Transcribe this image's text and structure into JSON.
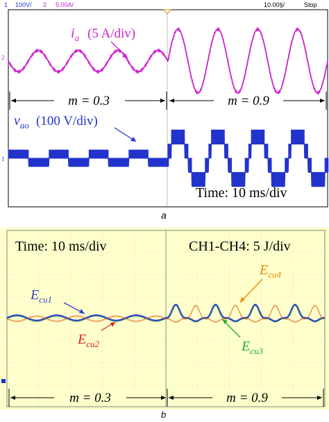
{
  "scope_a": {
    "header": {
      "ch1_num": "1",
      "ch1_scale": "100V/",
      "ch2_num": "2",
      "ch2_scale": "5.00A/",
      "timebase": "10.00§/",
      "state": "Stop"
    },
    "marker_ch2": "2",
    "marker_ch1": "1"
  },
  "chart_data": [
    {
      "type": "line",
      "panel": "a",
      "caption": "a",
      "time_per_div_ms": 10,
      "x_divisions": 10,
      "y_divisions": 8,
      "background": "#ffffff",
      "grid": false,
      "annotations": {
        "ia_label": "i",
        "ia_sub": "a",
        "ia_scale": "(5 A/div)",
        "vao_label": "v",
        "vao_sub": "ao",
        "vao_scale": "(100 V/div)",
        "m_left": "m = 0.3",
        "m_right": "m = 0.9",
        "time": "Time: 10 ms/div"
      },
      "series": [
        {
          "name": "i_a",
          "color": "#cc22cc",
          "unit": "A/div",
          "segments": [
            {
              "m": 0.3,
              "x_range_div": [
                0,
                5
              ],
              "amplitude_div": 0.45,
              "cycles": 4
            },
            {
              "m": 0.9,
              "x_range_div": [
                5,
                10
              ],
              "amplitude_div": 1.35,
              "cycles": 4
            }
          ]
        },
        {
          "name": "v_ao",
          "color": "#2233cc",
          "unit": "V/div",
          "segments": [
            {
              "m": 0.3,
              "x_range_div": [
                0,
                5
              ],
              "levels_div": [
                -0.35,
                0,
                0.35
              ],
              "cycles": 4
            },
            {
              "m": 0.9,
              "x_range_div": [
                5,
                10
              ],
              "levels_div": [
                -1.2,
                -0.6,
                0,
                0.6,
                1.2
              ],
              "cycles": 4
            }
          ]
        }
      ]
    },
    {
      "type": "line",
      "panel": "b",
      "caption": "b",
      "time_per_div_ms": 10,
      "x_divisions": 10,
      "y_divisions": 8,
      "background": "#ffffcc",
      "grid": true,
      "annotations": {
        "time": "Time: 10 ms/div",
        "scale": "CH1-CH4: 5 J/div",
        "ecu1": "E",
        "ecu1_sub": "cu1",
        "ecu2": "E",
        "ecu2_sub": "cu2",
        "ecu3": "E",
        "ecu3_sub": "cu3",
        "ecu4": "E",
        "ecu4_sub": "cu4",
        "m_left": "m = 0.3",
        "m_right": "m = 0.9"
      },
      "series": [
        {
          "name": "E_cu1",
          "color": "#3344cc"
        },
        {
          "name": "E_cu2",
          "color": "#dd2222"
        },
        {
          "name": "E_cu3",
          "color": "#22aa33"
        },
        {
          "name": "E_cu4",
          "color": "#ee8800"
        }
      ],
      "segments": [
        {
          "m": 0.3,
          "x_range_div": [
            0,
            5
          ],
          "ripple_div": 0.12,
          "cycles": 4
        },
        {
          "m": 0.9,
          "x_range_div": [
            5,
            10
          ],
          "ripple_div": 0.6,
          "cycles": 4
        }
      ]
    }
  ]
}
